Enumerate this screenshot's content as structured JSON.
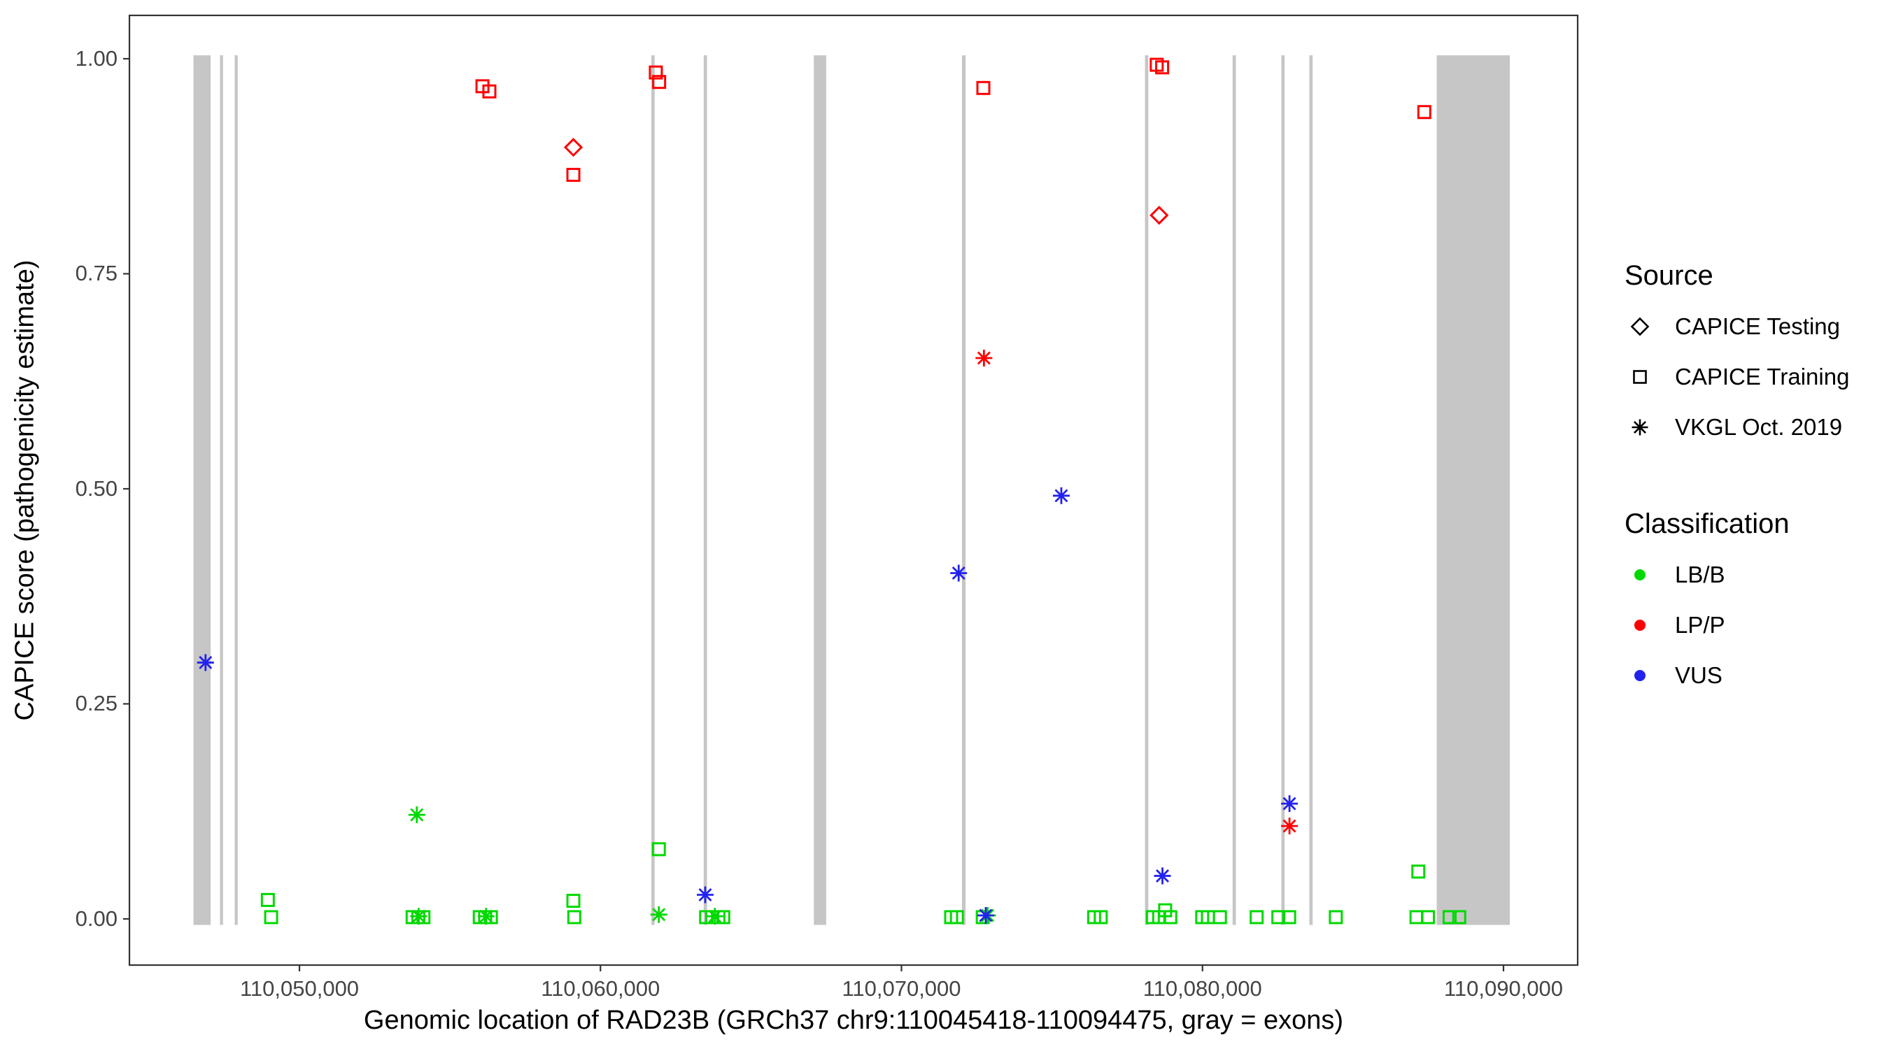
{
  "chart_data": {
    "type": "scatter",
    "title": "",
    "xlabel": "Genomic location of RAD23B (GRCh37 chr9:110045418-110094475, gray = exons)",
    "ylabel": "CAPICE score (pathogenicity estimate)",
    "xlim": [
      110044352,
      110092464
    ],
    "ylim": [
      -0.0537,
      1.0504
    ],
    "grid": false,
    "legend_position": "right",
    "exon_color": "#c6c6c6",
    "x_ticks": [
      {
        "value": 110050000,
        "label": "110,050,000"
      },
      {
        "value": 110060000,
        "label": "110,060,000"
      },
      {
        "value": 110070000,
        "label": "110,070,000"
      },
      {
        "value": 110080000,
        "label": "110,080,000"
      },
      {
        "value": 110090000,
        "label": "110,090,000"
      }
    ],
    "y_ticks": [
      {
        "value": 0.0,
        "label": "0.00"
      },
      {
        "value": 0.25,
        "label": "0.25"
      },
      {
        "value": 0.5,
        "label": "0.50"
      },
      {
        "value": 0.75,
        "label": "0.75"
      },
      {
        "value": 1.0,
        "label": "1.00"
      }
    ],
    "exons": [
      [
        110046480,
        110047050
      ],
      [
        110047360,
        110047460
      ],
      [
        110047850,
        110047950
      ],
      [
        110061690,
        110061800
      ],
      [
        110063430,
        110063540
      ],
      [
        110067090,
        110067500
      ],
      [
        110072010,
        110072130
      ],
      [
        110078090,
        110078200
      ],
      [
        110081000,
        110081110
      ],
      [
        110082620,
        110082730
      ],
      [
        110083550,
        110083660
      ],
      [
        110087780,
        110090210
      ]
    ],
    "series": [
      {
        "source": "CAPICE Training",
        "classification": "LB/B",
        "shape": "square",
        "color": "#00d900",
        "points": [
          [
            110048950,
            0.022
          ],
          [
            110049060,
            0.002
          ],
          [
            110053760,
            0.002
          ],
          [
            110053950,
            0.002
          ],
          [
            110054120,
            0.002
          ],
          [
            110055990,
            0.002
          ],
          [
            110056170,
            0.002
          ],
          [
            110056360,
            0.002
          ],
          [
            110059100,
            0.021
          ],
          [
            110059130,
            0.002
          ],
          [
            110061940,
            0.081
          ],
          [
            110063510,
            0.002
          ],
          [
            110063710,
            0.002
          ],
          [
            110063920,
            0.002
          ],
          [
            110064080,
            0.002
          ],
          [
            110071650,
            0.002
          ],
          [
            110071840,
            0.002
          ],
          [
            110072700,
            0.002
          ],
          [
            110076400,
            0.002
          ],
          [
            110076620,
            0.002
          ],
          [
            110078350,
            0.002
          ],
          [
            110078560,
            0.002
          ],
          [
            110078760,
            0.01
          ],
          [
            110078930,
            0.002
          ],
          [
            110079990,
            0.002
          ],
          [
            110080180,
            0.002
          ],
          [
            110080580,
            0.002
          ],
          [
            110081800,
            0.002
          ],
          [
            110082520,
            0.002
          ],
          [
            110082880,
            0.002
          ],
          [
            110084430,
            0.002
          ],
          [
            110087170,
            0.055
          ],
          [
            110087110,
            0.002
          ],
          [
            110087490,
            0.002
          ],
          [
            110088210,
            0.002
          ],
          [
            110088530,
            0.002
          ]
        ]
      },
      {
        "source": "VKGL Oct. 2019",
        "classification": "LB/B",
        "shape": "asterisk",
        "color": "#00d900",
        "points": [
          [
            110053900,
            0.121
          ],
          [
            110053960,
            0.003
          ],
          [
            110056200,
            0.003
          ],
          [
            110061940,
            0.005
          ],
          [
            110063800,
            0.003
          ],
          [
            110072860,
            0.004
          ]
        ]
      },
      {
        "source": "CAPICE Training",
        "classification": "LP/P",
        "shape": "square",
        "color": "#ff0000",
        "points": [
          [
            110056080,
            0.968
          ],
          [
            110056310,
            0.962
          ],
          [
            110059100,
            0.865
          ],
          [
            110061840,
            0.984
          ],
          [
            110061950,
            0.973
          ],
          [
            110072720,
            0.966
          ],
          [
            110078480,
            0.993
          ],
          [
            110078660,
            0.99
          ],
          [
            110087370,
            0.938
          ]
        ]
      },
      {
        "source": "CAPICE Testing",
        "classification": "LP/P",
        "shape": "diamond",
        "color": "#ff0000",
        "points": [
          [
            110059100,
            0.897
          ],
          [
            110078560,
            0.818
          ]
        ]
      },
      {
        "source": "VKGL Oct. 2019",
        "classification": "LP/P",
        "shape": "asterisk",
        "color": "#ff0000",
        "points": [
          [
            110072740,
            0.652
          ],
          [
            110082890,
            0.108
          ]
        ]
      },
      {
        "source": "VKGL Oct. 2019",
        "classification": "VUS",
        "shape": "asterisk",
        "color": "#2222ee",
        "points": [
          [
            110046880,
            0.298
          ],
          [
            110063480,
            0.028
          ],
          [
            110071900,
            0.402
          ],
          [
            110075310,
            0.492
          ],
          [
            110078670,
            0.05
          ],
          [
            110082890,
            0.134
          ],
          [
            110072800,
            0.004
          ]
        ]
      }
    ]
  },
  "legend": {
    "source_title": "Source",
    "source_items": [
      {
        "label": "CAPICE Testing",
        "shape": "diamond"
      },
      {
        "label": "CAPICE Training",
        "shape": "square"
      },
      {
        "label": "VKGL Oct. 2019",
        "shape": "asterisk"
      }
    ],
    "classification_title": "Classification",
    "classification_items": [
      {
        "label": "LB/B",
        "color": "#00d900"
      },
      {
        "label": "LP/P",
        "color": "#ff0000"
      },
      {
        "label": "VUS",
        "color": "#2222ee"
      }
    ]
  }
}
